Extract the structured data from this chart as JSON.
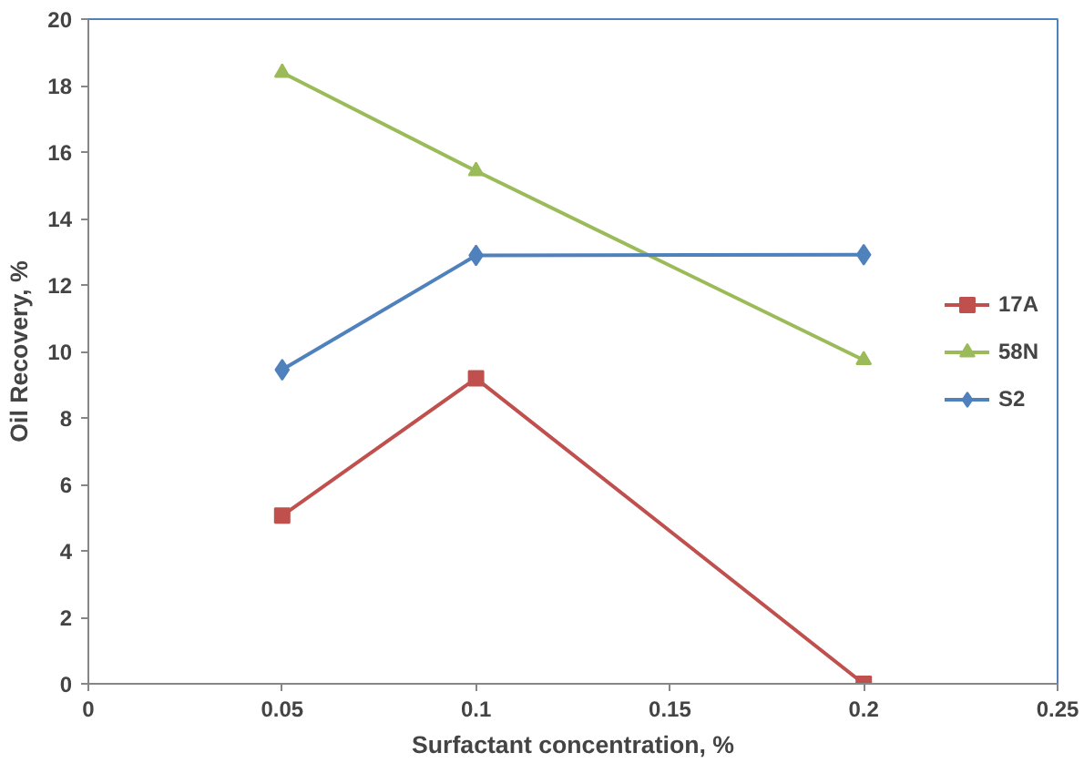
{
  "chart_data": {
    "type": "line",
    "xlabel": "Surfactant concentration, %",
    "ylabel": "Oil Recovery, %",
    "x": [
      0.05,
      0.1,
      0.2
    ],
    "series": [
      {
        "name": "17A",
        "color": "#c0504d",
        "marker": "square",
        "values": [
          5.06,
          9.19,
          0
        ]
      },
      {
        "name": "58N",
        "color": "#9bbb59",
        "marker": "triangle",
        "values": [
          18.39,
          15.43,
          9.74
        ]
      },
      {
        "name": "S2",
        "color": "#4f81bd",
        "marker": "diamond",
        "values": [
          9.45,
          12.89,
          12.91
        ]
      }
    ],
    "xlim": [
      0,
      0.25
    ],
    "xticks": [
      0,
      0.05,
      0.1,
      0.15,
      0.2,
      0.25
    ],
    "ylim": [
      0,
      20
    ],
    "yticks": [
      0,
      2,
      4,
      6,
      8,
      10,
      12,
      14,
      16,
      18,
      20
    ],
    "grid": false,
    "legend": "right"
  }
}
